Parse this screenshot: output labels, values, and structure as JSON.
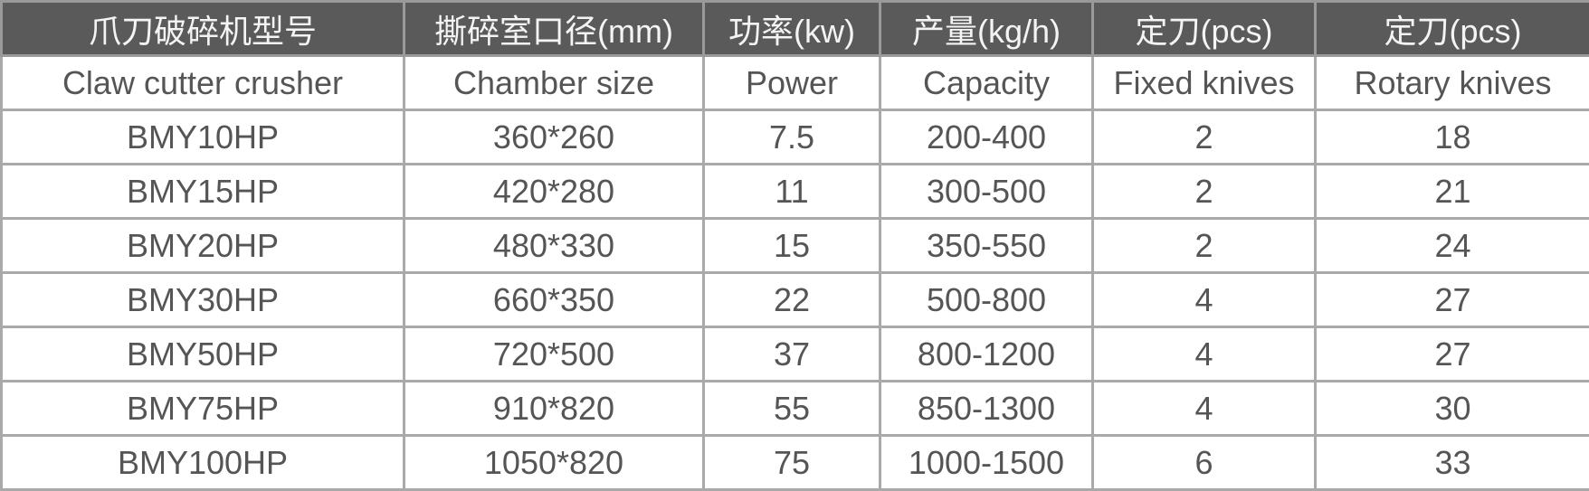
{
  "header_cn": [
    "爪刀破碎机型号",
    "撕碎室口径(mm)",
    "功率(kw)",
    "产量(kg/h)",
    "定刀(pcs)",
    "定刀(pcs)"
  ],
  "header_en": [
    "Claw cutter crusher",
    "Chamber size",
    "Power",
    "Capacity",
    "Fixed knives",
    "Rotary knives"
  ],
  "rows": [
    [
      "BMY10HP",
      "360*260",
      "7.5",
      "200-400",
      "2",
      "18"
    ],
    [
      "BMY15HP",
      "420*280",
      "11",
      "300-500",
      "2",
      "21"
    ],
    [
      "BMY20HP",
      "480*330",
      "15",
      "350-550",
      "2",
      "24"
    ],
    [
      "BMY30HP",
      "660*350",
      "22",
      "500-800",
      "4",
      "27"
    ],
    [
      "BMY50HP",
      "720*500",
      "37",
      "800-1200",
      "4",
      "27"
    ],
    [
      "BMY75HP",
      "910*820",
      "55",
      "850-1300",
      "4",
      "30"
    ],
    [
      "BMY100HP",
      "1050*820",
      "75",
      "1000-1500",
      "6",
      "33"
    ]
  ],
  "colors": {
    "header_bg": "#5a5a5a",
    "header_text": "#f4f4f4",
    "body_text": "#555555",
    "border": "#a9a9a9"
  }
}
